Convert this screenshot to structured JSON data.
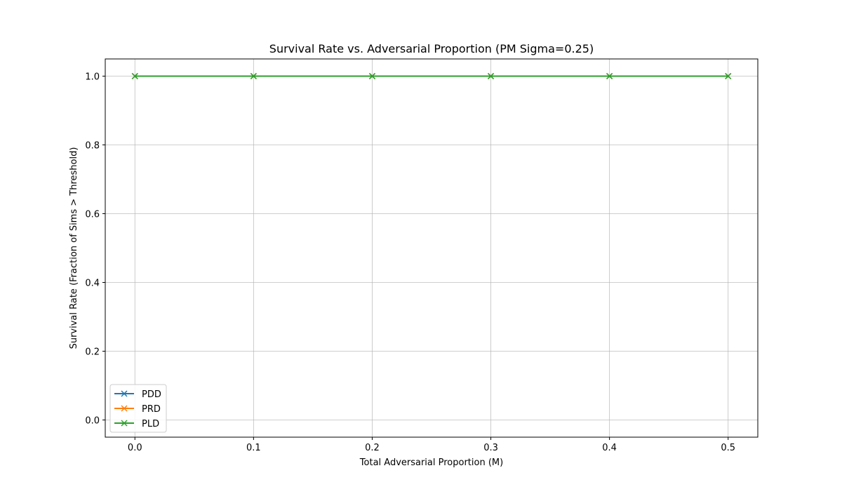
{
  "chart_data": {
    "type": "line",
    "title": "Survival Rate vs. Adversarial Proportion (PM Sigma=0.25)",
    "xlabel": "Total Adversarial Proportion (M)",
    "ylabel": "Survival Rate (Fraction of Sims > Threshold)",
    "x": [
      0.0,
      0.1,
      0.2,
      0.3,
      0.4,
      0.5
    ],
    "xlim": [
      -0.025,
      0.525
    ],
    "ylim": [
      -0.05,
      1.05
    ],
    "xticks": [
      0.0,
      0.1,
      0.2,
      0.3,
      0.4,
      0.5
    ],
    "xtick_labels": [
      "0.0",
      "0.1",
      "0.2",
      "0.3",
      "0.4",
      "0.5"
    ],
    "yticks": [
      0.0,
      0.2,
      0.4,
      0.6,
      0.8,
      1.0
    ],
    "ytick_labels": [
      "0.0",
      "0.2",
      "0.4",
      "0.6",
      "0.8",
      "1.0"
    ],
    "grid": true,
    "legend_position": "lower-left",
    "marker": "x",
    "series": [
      {
        "name": "PDD",
        "color": "#1f77b4",
        "values": [
          1.0,
          1.0,
          1.0,
          1.0,
          1.0,
          1.0
        ]
      },
      {
        "name": "PRD",
        "color": "#ff7f0e",
        "values": [
          1.0,
          1.0,
          1.0,
          1.0,
          1.0,
          1.0
        ]
      },
      {
        "name": "PLD",
        "color": "#2ca02c",
        "values": [
          1.0,
          1.0,
          1.0,
          1.0,
          1.0,
          1.0
        ]
      }
    ]
  }
}
